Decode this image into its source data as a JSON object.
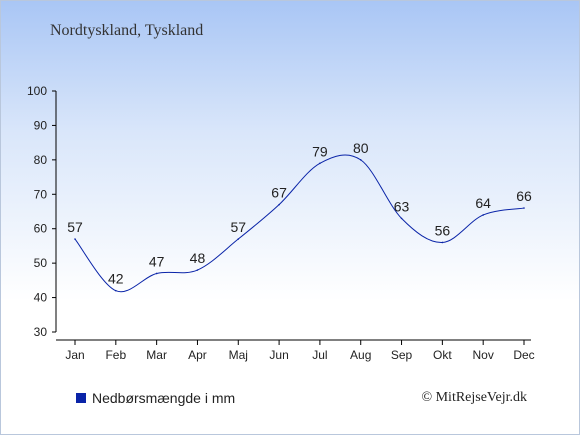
{
  "chart_data": {
    "type": "line",
    "title": "Nordtyskland, Tyskland",
    "categories": [
      "Jan",
      "Feb",
      "Mar",
      "Apr",
      "Maj",
      "Jun",
      "Jul",
      "Aug",
      "Sep",
      "Okt",
      "Nov",
      "Dec"
    ],
    "series": [
      {
        "name": "Nedbørsmængde i mm",
        "values": [
          57,
          42,
          47,
          48,
          57,
          67,
          79,
          80,
          63,
          56,
          64,
          66
        ]
      }
    ],
    "ylim": [
      30,
      100
    ],
    "yticks": [
      30,
      40,
      50,
      60,
      70,
      80,
      90,
      100
    ],
    "grid": false,
    "legend_position": "bottom-left",
    "line_color": "#0a24a8"
  },
  "legend": {
    "label": "Nedbørsmængde i mm",
    "color": "#0a24a8"
  },
  "copyright": "© MitRejseVejr.dk"
}
